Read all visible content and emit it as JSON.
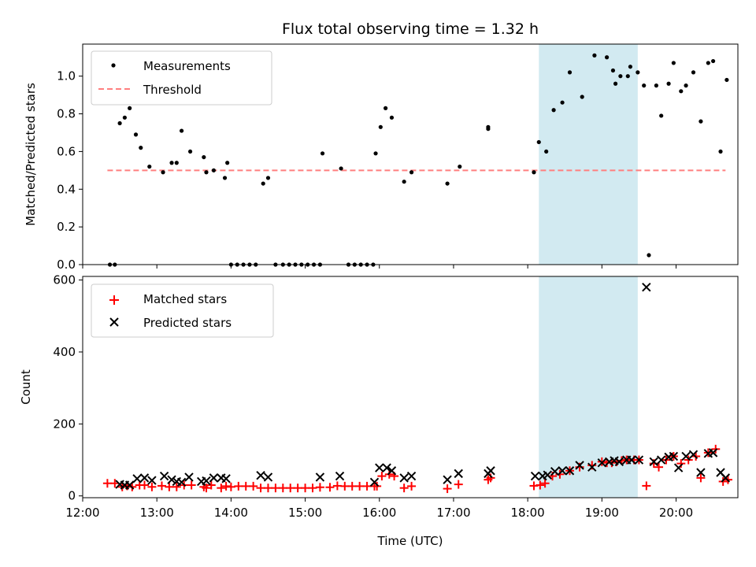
{
  "chart_data": [
    {
      "type": "scatter",
      "title": "Flux total observing time = 1.32 h",
      "xlabel": "",
      "ylabel": "Matched/Predicted stars",
      "xlim": [
        "12:00",
        "20:50"
      ],
      "ylim": [
        0,
        1.17
      ],
      "yticks": [
        "0.0",
        "0.2",
        "0.4",
        "0.6",
        "0.8",
        "1.0"
      ],
      "shaded_span": {
        "start": "18:09",
        "end": "19:29",
        "color": "#add8e6"
      },
      "legend_position": "top-left",
      "series": [
        {
          "name": "Measurements",
          "marker": "dot",
          "color": "#000000",
          "points": [
            [
              "12:22",
              0
            ],
            [
              "12:26",
              0
            ],
            [
              "12:30",
              0.75
            ],
            [
              "12:34",
              0.78
            ],
            [
              "12:38",
              0.83
            ],
            [
              "12:43",
              0.69
            ],
            [
              "12:47",
              0.62
            ],
            [
              "12:54",
              0.52
            ],
            [
              "13:05",
              0.49
            ],
            [
              "13:12",
              0.54
            ],
            [
              "13:16",
              0.54
            ],
            [
              "13:20",
              0.71
            ],
            [
              "13:27",
              0.6
            ],
            [
              "13:38",
              0.57
            ],
            [
              "13:40",
              0.49
            ],
            [
              "13:46",
              0.5
            ],
            [
              "13:55",
              0.46
            ],
            [
              "13:57",
              0.54
            ],
            [
              "14:00",
              0
            ],
            [
              "14:05",
              0
            ],
            [
              "14:10",
              0
            ],
            [
              "14:15",
              0
            ],
            [
              "14:20",
              0
            ],
            [
              "14:26",
              0.43
            ],
            [
              "14:30",
              0.46
            ],
            [
              "14:36",
              0
            ],
            [
              "14:42",
              0
            ],
            [
              "14:47",
              0
            ],
            [
              "14:52",
              0
            ],
            [
              "14:57",
              0
            ],
            [
              "15:02",
              0
            ],
            [
              "15:07",
              0
            ],
            [
              "15:12",
              0
            ],
            [
              "15:14",
              0.59
            ],
            [
              "15:29",
              0.51
            ],
            [
              "15:35",
              0
            ],
            [
              "15:40",
              0
            ],
            [
              "15:45",
              0
            ],
            [
              "15:50",
              0
            ],
            [
              "15:55",
              0
            ],
            [
              "15:57",
              0.59
            ],
            [
              "16:01",
              0.73
            ],
            [
              "16:05",
              0.83
            ],
            [
              "16:10",
              0.78
            ],
            [
              "16:20",
              0.44
            ],
            [
              "16:26",
              0.49
            ],
            [
              "16:55",
              0.43
            ],
            [
              "17:05",
              0.52
            ],
            [
              "17:28",
              0.72
            ],
            [
              "17:28",
              0.73
            ],
            [
              "18:05",
              0.49
            ],
            [
              "18:09",
              0.65
            ],
            [
              "18:15",
              0.6
            ],
            [
              "18:21",
              0.82
            ],
            [
              "18:28",
              0.86
            ],
            [
              "18:34",
              1.02
            ],
            [
              "18:44",
              0.89
            ],
            [
              "18:54",
              1.11
            ],
            [
              "19:04",
              1.1
            ],
            [
              "19:09",
              1.03
            ],
            [
              "19:11",
              0.96
            ],
            [
              "19:15",
              1.0
            ],
            [
              "19:21",
              1.0
            ],
            [
              "19:23",
              1.05
            ],
            [
              "19:29",
              1.02
            ],
            [
              "19:34",
              0.95
            ],
            [
              "19:38",
              0.05
            ],
            [
              "19:44",
              0.95
            ],
            [
              "19:48",
              0.79
            ],
            [
              "19:54",
              0.96
            ],
            [
              "19:58",
              1.07
            ],
            [
              "20:04",
              0.92
            ],
            [
              "20:08",
              0.95
            ],
            [
              "20:14",
              1.02
            ],
            [
              "20:20",
              0.76
            ],
            [
              "20:26",
              1.07
            ],
            [
              "20:30",
              1.08
            ],
            [
              "20:36",
              0.6
            ],
            [
              "20:41",
              0.98
            ]
          ]
        },
        {
          "name": "Threshold",
          "marker": "dashed-line",
          "color": "#ff7f7f",
          "points": [
            [
              "12:20",
              0.5
            ],
            [
              "20:40",
              0.5
            ]
          ]
        }
      ]
    },
    {
      "type": "scatter",
      "title": "",
      "xlabel": "Time (UTC)",
      "ylabel": "Count",
      "xlim": [
        "12:00",
        "20:50"
      ],
      "ylim": [
        -5,
        610
      ],
      "yticks": [
        "0",
        "200",
        "400",
        "600"
      ],
      "xticks": [
        "12:00",
        "13:00",
        "14:00",
        "15:00",
        "16:00",
        "17:00",
        "18:00",
        "19:00",
        "20:00"
      ],
      "shaded_span": {
        "start": "18:09",
        "end": "19:29",
        "color": "#add8e6"
      },
      "legend_position": "top-left",
      "series": [
        {
          "name": "Matched stars",
          "marker": "plus",
          "color": "#ff0000",
          "points": [
            [
              "12:20",
              35
            ],
            [
              "12:26",
              35
            ],
            [
              "12:32",
              25
            ],
            [
              "12:36",
              28
            ],
            [
              "12:40",
              25
            ],
            [
              "12:46",
              30
            ],
            [
              "12:50",
              30
            ],
            [
              "12:56",
              25
            ],
            [
              "13:04",
              28
            ],
            [
              "13:10",
              25
            ],
            [
              "13:16",
              25
            ],
            [
              "13:22",
              30
            ],
            [
              "13:28",
              30
            ],
            [
              "13:38",
              25
            ],
            [
              "13:40",
              22
            ],
            [
              "13:44",
              30
            ],
            [
              "13:52",
              22
            ],
            [
              "13:56",
              27
            ],
            [
              "14:00",
              25
            ],
            [
              "14:06",
              27
            ],
            [
              "14:12",
              27
            ],
            [
              "14:18",
              27
            ],
            [
              "14:24",
              22
            ],
            [
              "14:30",
              22
            ],
            [
              "14:36",
              22
            ],
            [
              "14:42",
              22
            ],
            [
              "14:48",
              22
            ],
            [
              "14:54",
              22
            ],
            [
              "15:00",
              22
            ],
            [
              "15:06",
              22
            ],
            [
              "15:12",
              24
            ],
            [
              "15:20",
              24
            ],
            [
              "15:26",
              28
            ],
            [
              "15:32",
              27
            ],
            [
              "15:38",
              27
            ],
            [
              "15:44",
              27
            ],
            [
              "15:50",
              27
            ],
            [
              "15:56",
              27
            ],
            [
              "15:58",
              27
            ],
            [
              "16:02",
              55
            ],
            [
              "16:08",
              60
            ],
            [
              "16:12",
              55
            ],
            [
              "16:20",
              22
            ],
            [
              "16:26",
              27
            ],
            [
              "16:55",
              20
            ],
            [
              "17:04",
              32
            ],
            [
              "17:28",
              45
            ],
            [
              "17:30",
              50
            ],
            [
              "18:05",
              28
            ],
            [
              "18:10",
              30
            ],
            [
              "18:14",
              35
            ],
            [
              "18:20",
              55
            ],
            [
              "18:26",
              60
            ],
            [
              "18:34",
              70
            ],
            [
              "18:42",
              80
            ],
            [
              "18:52",
              85
            ],
            [
              "19:00",
              95
            ],
            [
              "19:04",
              92
            ],
            [
              "19:08",
              92
            ],
            [
              "19:12",
              95
            ],
            [
              "19:16",
              98
            ],
            [
              "19:20",
              100
            ],
            [
              "19:26",
              100
            ],
            [
              "19:30",
              100
            ],
            [
              "19:36",
              28
            ],
            [
              "19:42",
              90
            ],
            [
              "19:46",
              80
            ],
            [
              "19:52",
              100
            ],
            [
              "19:58",
              110
            ],
            [
              "20:04",
              90
            ],
            [
              "20:10",
              100
            ],
            [
              "20:16",
              110
            ],
            [
              "20:20",
              50
            ],
            [
              "20:26",
              120
            ],
            [
              "20:32",
              130
            ],
            [
              "20:38",
              40
            ],
            [
              "20:42",
              45
            ]
          ]
        },
        {
          "name": "Predicted stars",
          "marker": "x",
          "color": "#000000",
          "points": [
            [
              "12:30",
              32
            ],
            [
              "12:34",
              30
            ],
            [
              "12:38",
              30
            ],
            [
              "12:44",
              48
            ],
            [
              "12:50",
              50
            ],
            [
              "12:56",
              43
            ],
            [
              "13:06",
              55
            ],
            [
              "13:12",
              45
            ],
            [
              "13:16",
              40
            ],
            [
              "13:20",
              38
            ],
            [
              "13:26",
              52
            ],
            [
              "13:36",
              40
            ],
            [
              "13:40",
              42
            ],
            [
              "13:46",
              50
            ],
            [
              "13:52",
              50
            ],
            [
              "13:56",
              48
            ],
            [
              "14:24",
              57
            ],
            [
              "14:30",
              52
            ],
            [
              "15:12",
              52
            ],
            [
              "15:28",
              55
            ],
            [
              "15:56",
              38
            ],
            [
              "16:00",
              78
            ],
            [
              "16:06",
              78
            ],
            [
              "16:10",
              70
            ],
            [
              "16:20",
              50
            ],
            [
              "16:26",
              55
            ],
            [
              "16:55",
              45
            ],
            [
              "17:04",
              62
            ],
            [
              "17:28",
              62
            ],
            [
              "17:30",
              70
            ],
            [
              "18:06",
              55
            ],
            [
              "18:12",
              55
            ],
            [
              "18:16",
              58
            ],
            [
              "18:22",
              68
            ],
            [
              "18:28",
              70
            ],
            [
              "18:34",
              70
            ],
            [
              "18:42",
              85
            ],
            [
              "18:52",
              80
            ],
            [
              "19:00",
              92
            ],
            [
              "19:06",
              95
            ],
            [
              "19:10",
              98
            ],
            [
              "19:14",
              95
            ],
            [
              "19:20",
              100
            ],
            [
              "19:24",
              100
            ],
            [
              "19:30",
              100
            ],
            [
              "19:36",
              580
            ],
            [
              "19:42",
              95
            ],
            [
              "19:48",
              100
            ],
            [
              "19:54",
              108
            ],
            [
              "19:58",
              110
            ],
            [
              "20:02",
              78
            ],
            [
              "20:08",
              110
            ],
            [
              "20:14",
              115
            ],
            [
              "20:20",
              65
            ],
            [
              "20:26",
              118
            ],
            [
              "20:30",
              120
            ],
            [
              "20:36",
              65
            ],
            [
              "20:40",
              50
            ]
          ]
        }
      ]
    }
  ]
}
